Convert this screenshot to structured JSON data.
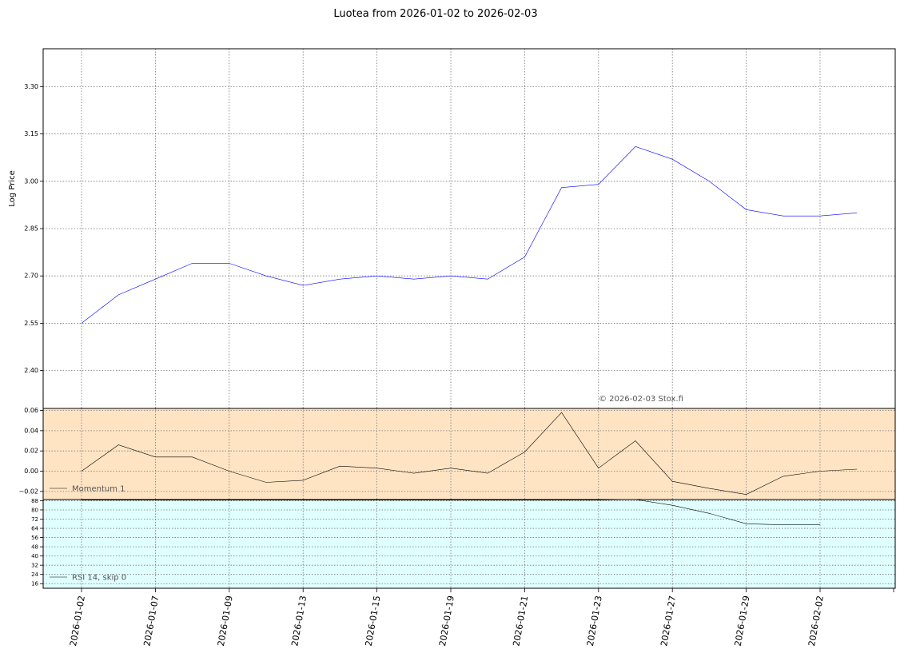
{
  "title": "Luotea from 2026-01-02 to 2026-02-03",
  "copyright": "© 2026-02-03 Stox.fi",
  "chart_data": [
    {
      "type": "line",
      "ylabel": "Log Price",
      "ylim": [
        2.28,
        3.42
      ],
      "yticks": [
        "2.40",
        "2.55",
        "2.70",
        "2.85",
        "3.00",
        "3.15",
        "3.30"
      ],
      "grid": true,
      "xticks": [
        "2026-01-02",
        "2026-01-07",
        "2026-01-09",
        "2026-01-13",
        "2026-01-15",
        "2026-01-19",
        "2026-01-21",
        "2026-01-23",
        "2026-01-27",
        "2026-01-29",
        "2026-02-02"
      ],
      "series": [
        {
          "color": "#0000ff",
          "values": [
            2.55,
            2.64,
            2.69,
            2.74,
            2.74,
            2.7,
            2.67,
            2.69,
            2.7,
            2.69,
            2.7,
            2.69,
            2.76,
            2.98,
            2.99,
            3.11,
            3.07,
            3.0,
            2.91,
            2.89,
            2.89,
            2.9
          ]
        }
      ]
    },
    {
      "type": "line",
      "legend": "Momentum 1",
      "legend_position": "bottom-left",
      "background": "#ffe4c4",
      "ylim": [
        -0.028,
        0.062
      ],
      "yticks": [
        "−0.02",
        "0.00",
        "0.02",
        "0.04",
        "0.06"
      ],
      "series": [
        {
          "name": "Momentum 1",
          "color": "#000000",
          "values": [
            0.0,
            0.026,
            0.014,
            0.014,
            0.0,
            -0.011,
            -0.009,
            0.005,
            0.003,
            -0.002,
            0.003,
            -0.002,
            0.019,
            0.058,
            0.003,
            0.03,
            -0.01,
            -0.017,
            -0.023,
            -0.005,
            0.0,
            0.002
          ]
        }
      ]
    },
    {
      "type": "line",
      "legend": "RSI 14, skip 0",
      "legend_position": "bottom-left",
      "background": "#e0ffff",
      "ylim": [
        12,
        89
      ],
      "yticks": [
        "16",
        "24",
        "32",
        "40",
        "48",
        "56",
        "64",
        "72",
        "80",
        "88"
      ],
      "series": [
        {
          "name": "RSI 14, skip 0",
          "color": "#000000",
          "values": [
            88.5,
            88.5,
            88.5,
            88.5,
            88.5,
            88.5,
            88.5,
            88.5,
            88.5,
            88.5,
            88.5,
            88.5,
            88.5,
            88.5,
            88.5,
            89,
            84,
            77,
            68,
            67,
            67
          ]
        }
      ]
    }
  ]
}
